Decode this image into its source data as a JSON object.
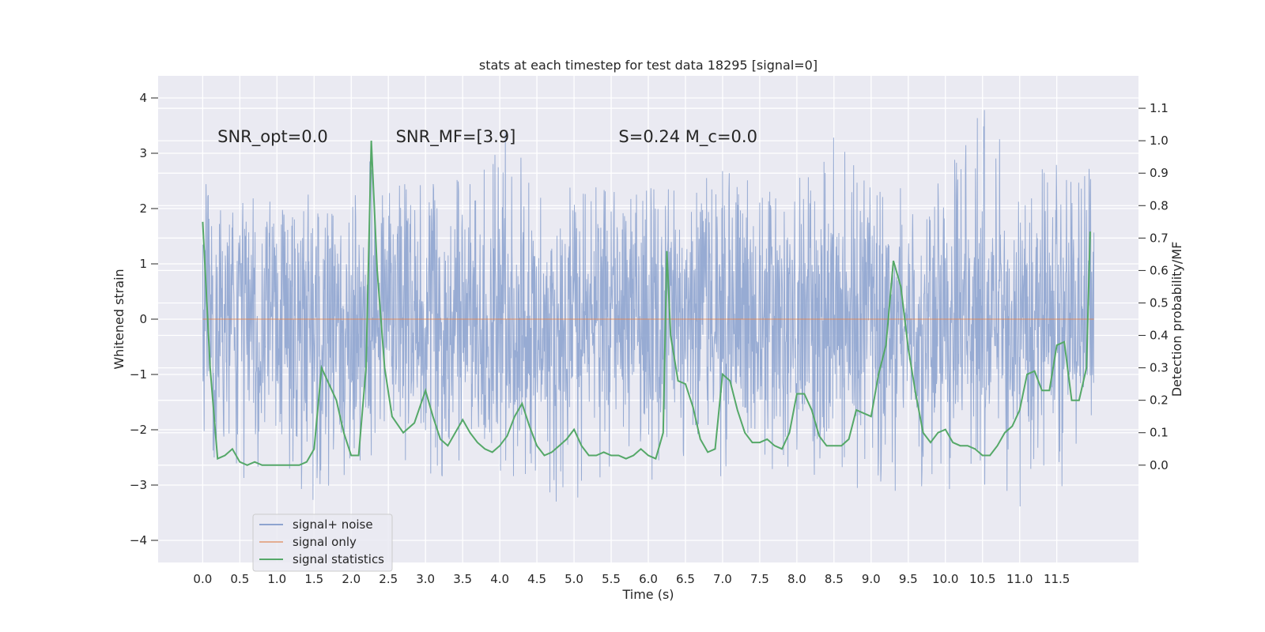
{
  "chart_data": {
    "type": "line",
    "title": "stats at each timestep for test data 18295 [signal=0]",
    "xlabel": "Time (s)",
    "ylabel": "Whitened strain",
    "y2label": "Detection probability/MF",
    "xlim": [
      -0.6,
      12.6
    ],
    "ylim": [
      -4.4,
      4.4
    ],
    "y2lim": [
      -0.3,
      1.2
    ],
    "grid": true,
    "legend_position": "lower-left",
    "x_ticks": [
      0.0,
      0.5,
      1.0,
      1.5,
      2.0,
      2.5,
      3.0,
      3.5,
      4.0,
      4.5,
      5.0,
      5.5,
      6.0,
      6.5,
      7.0,
      7.5,
      8.0,
      8.5,
      9.0,
      9.5,
      10.0,
      10.5,
      11.0,
      11.5
    ],
    "x_tick_labels": [
      "0.0",
      "0.5",
      "1.0",
      "1.5",
      "2.0",
      "2.5",
      "3.0",
      "3.5",
      "4.0",
      "4.5",
      "5.0",
      "5.5",
      "6.0",
      "6.5",
      "7.0",
      "7.5",
      "8.0",
      "8.5",
      "9.0",
      "9.5",
      "10.0",
      "10.5",
      "11.0",
      "11.5"
    ],
    "y_ticks": [
      -4,
      -3,
      -2,
      -1,
      0,
      1,
      2,
      3,
      4
    ],
    "y_tick_labels": [
      "−4",
      "−3",
      "−2",
      "−1",
      "0",
      "1",
      "2",
      "3",
      "4"
    ],
    "y2_ticks": [
      0.0,
      0.1,
      0.2,
      0.3,
      0.4,
      0.5,
      0.6,
      0.7,
      0.8,
      0.9,
      1.0,
      1.1
    ],
    "y2_tick_labels": [
      "0.0",
      "0.1",
      "0.2",
      "0.3",
      "0.4",
      "0.5",
      "0.6",
      "0.7",
      "0.8",
      "0.9",
      "1.0",
      "1.1"
    ],
    "annotations": [
      {
        "text": "SNR_opt=0.0",
        "x": 0.2,
        "y": 3.3
      },
      {
        "text": "SNR_MF=[3.9]",
        "x": 2.6,
        "y": 3.3
      },
      {
        "text": "S=0.24   M_c=0.0",
        "x": 5.6,
        "y": 3.3
      }
    ],
    "series": [
      {
        "name": "signal+ noise",
        "axis": "left",
        "color": "#8ea4cf",
        "x_range": [
          0.0,
          12.0
        ],
        "envelope_x": [
          0.0,
          0.5,
          1.0,
          1.5,
          2.0,
          2.3,
          2.5,
          3.0,
          3.5,
          4.0,
          4.5,
          5.0,
          5.5,
          6.0,
          6.5,
          7.0,
          7.5,
          8.0,
          8.5,
          9.0,
          9.5,
          10.0,
          10.5,
          11.0,
          11.5,
          12.0
        ],
        "envelope_upper": [
          2.6,
          2.2,
          2.3,
          2.4,
          2.3,
          3.8,
          2.5,
          2.5,
          2.6,
          4.0,
          2.5,
          2.5,
          2.4,
          2.6,
          2.4,
          2.7,
          2.5,
          2.6,
          3.4,
          2.4,
          2.5,
          2.6,
          4.1,
          2.4,
          3.0,
          2.9
        ],
        "envelope_lower": [
          -2.4,
          -3.2,
          -2.5,
          -3.4,
          -2.8,
          -2.6,
          -2.7,
          -2.9,
          -2.8,
          -2.8,
          -3.3,
          -3.4,
          -2.9,
          -3.0,
          -2.8,
          -3.0,
          -2.7,
          -3.0,
          -2.9,
          -3.3,
          -3.0,
          -3.1,
          -3.1,
          -3.6,
          -3.0,
          -3.4
        ]
      },
      {
        "name": "signal only",
        "axis": "left",
        "color": "#dd8452",
        "x": [
          0.0,
          12.0
        ],
        "y": [
          0.0,
          0.0
        ]
      },
      {
        "name": "signal statistics",
        "axis": "right",
        "color": "#55a868",
        "x": [
          0.0,
          0.1,
          0.2,
          0.3,
          0.4,
          0.5,
          0.6,
          0.7,
          0.8,
          0.9,
          1.0,
          1.1,
          1.2,
          1.3,
          1.4,
          1.5,
          1.6,
          1.7,
          1.8,
          1.9,
          2.0,
          2.1,
          2.2,
          2.27,
          2.35,
          2.45,
          2.55,
          2.7,
          2.85,
          3.0,
          3.1,
          3.2,
          3.3,
          3.4,
          3.5,
          3.6,
          3.7,
          3.8,
          3.9,
          4.0,
          4.1,
          4.2,
          4.3,
          4.4,
          4.5,
          4.6,
          4.7,
          4.8,
          4.9,
          5.0,
          5.1,
          5.2,
          5.3,
          5.4,
          5.5,
          5.6,
          5.7,
          5.8,
          5.9,
          6.0,
          6.1,
          6.2,
          6.25,
          6.3,
          6.4,
          6.5,
          6.6,
          6.7,
          6.8,
          6.9,
          7.0,
          7.1,
          7.2,
          7.3,
          7.4,
          7.5,
          7.6,
          7.7,
          7.8,
          7.9,
          8.0,
          8.1,
          8.2,
          8.3,
          8.4,
          8.5,
          8.6,
          8.7,
          8.8,
          8.9,
          9.0,
          9.1,
          9.2,
          9.3,
          9.4,
          9.5,
          9.6,
          9.7,
          9.8,
          9.9,
          10.0,
          10.1,
          10.2,
          10.3,
          10.4,
          10.5,
          10.6,
          10.7,
          10.8,
          10.9,
          11.0,
          11.1,
          11.2,
          11.3,
          11.4,
          11.5,
          11.6,
          11.7,
          11.8,
          11.9,
          11.95
        ],
        "y": [
          0.75,
          0.3,
          0.02,
          0.03,
          0.05,
          0.01,
          0.0,
          0.01,
          0.0,
          0.0,
          0.0,
          0.0,
          0.0,
          0.0,
          0.01,
          0.05,
          0.3,
          0.25,
          0.2,
          0.1,
          0.03,
          0.03,
          0.3,
          1.0,
          0.6,
          0.3,
          0.15,
          0.1,
          0.13,
          0.23,
          0.15,
          0.08,
          0.06,
          0.1,
          0.14,
          0.1,
          0.07,
          0.05,
          0.04,
          0.06,
          0.09,
          0.15,
          0.19,
          0.12,
          0.06,
          0.03,
          0.04,
          0.06,
          0.08,
          0.11,
          0.06,
          0.03,
          0.03,
          0.04,
          0.03,
          0.03,
          0.02,
          0.03,
          0.05,
          0.03,
          0.02,
          0.1,
          0.66,
          0.4,
          0.26,
          0.25,
          0.18,
          0.08,
          0.04,
          0.05,
          0.28,
          0.26,
          0.17,
          0.1,
          0.07,
          0.07,
          0.08,
          0.06,
          0.05,
          0.1,
          0.22,
          0.22,
          0.17,
          0.09,
          0.06,
          0.06,
          0.06,
          0.08,
          0.17,
          0.16,
          0.15,
          0.28,
          0.37,
          0.63,
          0.55,
          0.36,
          0.22,
          0.1,
          0.07,
          0.1,
          0.11,
          0.07,
          0.06,
          0.06,
          0.05,
          0.03,
          0.03,
          0.06,
          0.1,
          0.12,
          0.17,
          0.28,
          0.29,
          0.23,
          0.23,
          0.37,
          0.38,
          0.2,
          0.2,
          0.3,
          0.72
        ]
      }
    ]
  }
}
